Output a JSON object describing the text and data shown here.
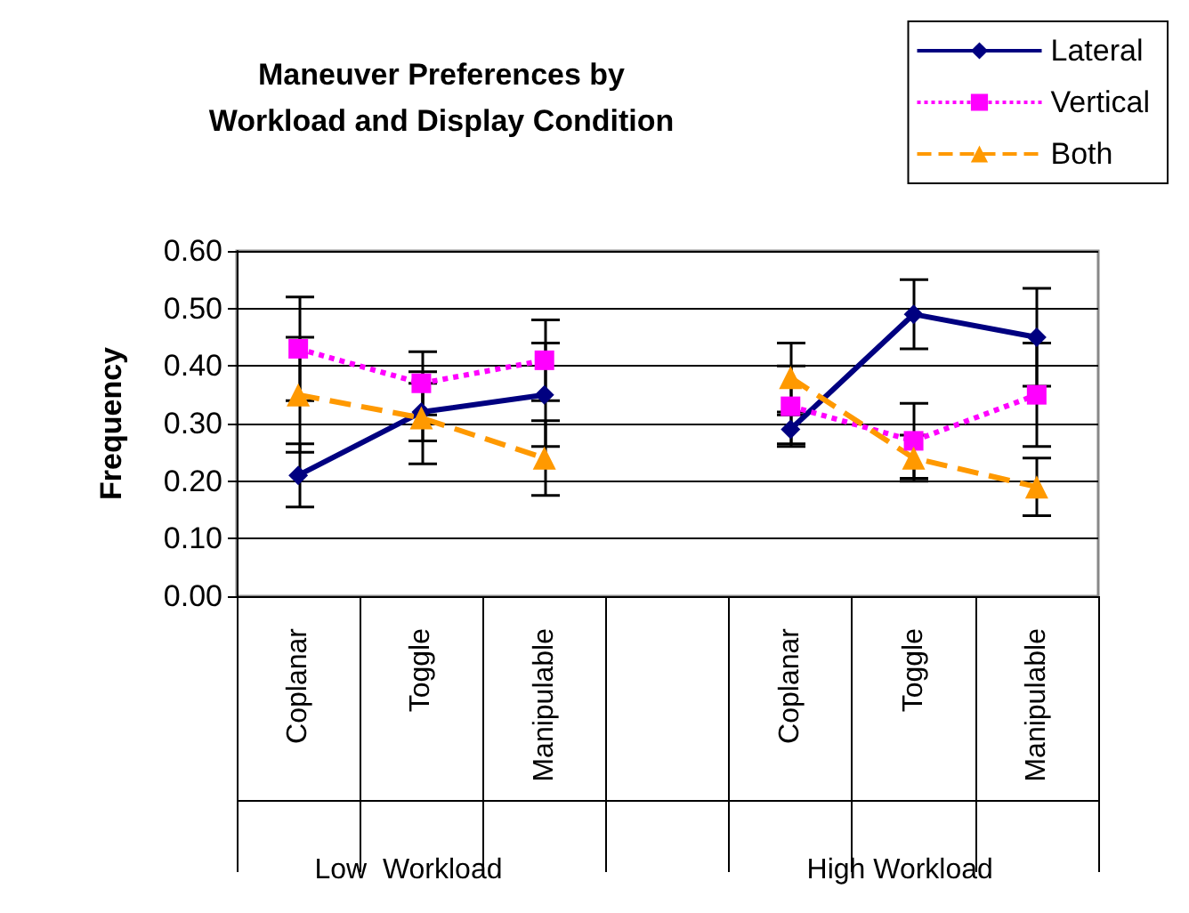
{
  "chart_data": {
    "type": "line",
    "title": "Maneuver Preferences by\nWorkload and Display Condition",
    "ylabel": "Frequency",
    "categories": [
      "Coplanar",
      "Toggle",
      "Manipulable",
      null,
      "Coplanar",
      "Toggle",
      "Manipulable"
    ],
    "series": [
      {
        "name": "Lateral",
        "color": "#000080",
        "marker": "diamond",
        "line_style": "solid",
        "values": [
          0.21,
          0.32,
          0.35,
          null,
          0.29,
          0.49,
          0.45
        ],
        "errors": [
          0.055,
          0.05,
          0.09,
          null,
          0.025,
          0.06,
          0.085
        ]
      },
      {
        "name": "Vertical",
        "color": "#ff00ff",
        "marker": "square",
        "line_style": "dotted",
        "values": [
          0.43,
          0.37,
          0.41,
          null,
          0.33,
          0.27,
          0.35
        ],
        "errors": [
          0.09,
          0.055,
          0.07,
          null,
          0.07,
          0.065,
          0.09
        ]
      },
      {
        "name": "Both",
        "color": "#ff9900",
        "marker": "triangle",
        "line_style": "dashed",
        "values": [
          0.35,
          0.31,
          0.24,
          null,
          0.38,
          0.24,
          0.19
        ],
        "errors": [
          0.1,
          0.08,
          0.065,
          null,
          0.06,
          0.04,
          0.05
        ]
      }
    ],
    "ylim": [
      0,
      0.6
    ],
    "yticks": [
      {
        "value": 0,
        "label": "0.00"
      },
      {
        "value": 0.1,
        "label": "0.10"
      },
      {
        "value": 0.2,
        "label": "0.20"
      },
      {
        "value": 0.3,
        "label": "0.30"
      },
      {
        "value": 0.4,
        "label": "0.40"
      },
      {
        "value": 0.5,
        "label": "0.50"
      },
      {
        "value": 0.6,
        "label": "0.60"
      }
    ],
    "grid": "y",
    "legend": "top right",
    "annotations": [
      "Low  Workload",
      "High Workload"
    ]
  }
}
